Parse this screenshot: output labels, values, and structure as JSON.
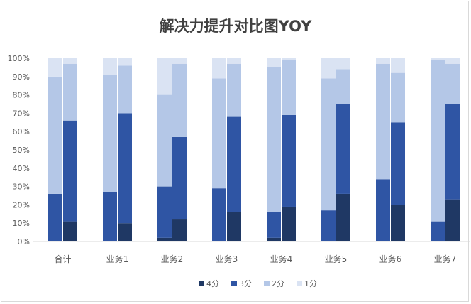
{
  "chart_data": {
    "type": "bar",
    "stacked": true,
    "percent": true,
    "title": "解决力提升对比图YOY",
    "xlabel": "",
    "ylabel": "",
    "ylim": [
      0,
      100
    ],
    "yticks": [
      "0%",
      "10%",
      "20%",
      "30%",
      "40%",
      "50%",
      "60%",
      "70%",
      "80%",
      "90%",
      "100%"
    ],
    "categories": [
      "合计",
      "业务1",
      "业务2",
      "业务3",
      "业务4",
      "业务5",
      "业务6",
      "业务7"
    ],
    "bars_per_category": 2,
    "series": [
      {
        "name": "4分",
        "color": "#1f3864",
        "values": [
          [
            0,
            11
          ],
          [
            0,
            10
          ],
          [
            2,
            12
          ],
          [
            0,
            16
          ],
          [
            2,
            19
          ],
          [
            0,
            26
          ],
          [
            0,
            20
          ],
          [
            0,
            23
          ]
        ]
      },
      {
        "name": "3分",
        "color": "#2f55a4",
        "values": [
          [
            26,
            55
          ],
          [
            27,
            60
          ],
          [
            28,
            45
          ],
          [
            29,
            52
          ],
          [
            14,
            50
          ],
          [
            17,
            49
          ],
          [
            34,
            45
          ],
          [
            11,
            52
          ]
        ]
      },
      {
        "name": "2分",
        "color": "#b4c7e7",
        "values": [
          [
            64,
            31
          ],
          [
            64,
            26
          ],
          [
            50,
            40
          ],
          [
            60,
            29
          ],
          [
            79,
            30
          ],
          [
            72,
            19
          ],
          [
            63,
            27
          ],
          [
            88,
            22
          ]
        ]
      },
      {
        "name": "1分",
        "color": "#dae3f3",
        "values": [
          [
            10,
            3
          ],
          [
            9,
            4
          ],
          [
            20,
            3
          ],
          [
            11,
            3
          ],
          [
            5,
            1
          ],
          [
            11,
            6
          ],
          [
            3,
            8
          ],
          [
            1,
            3
          ]
        ]
      }
    ],
    "grid": false,
    "legend": "bottom"
  }
}
